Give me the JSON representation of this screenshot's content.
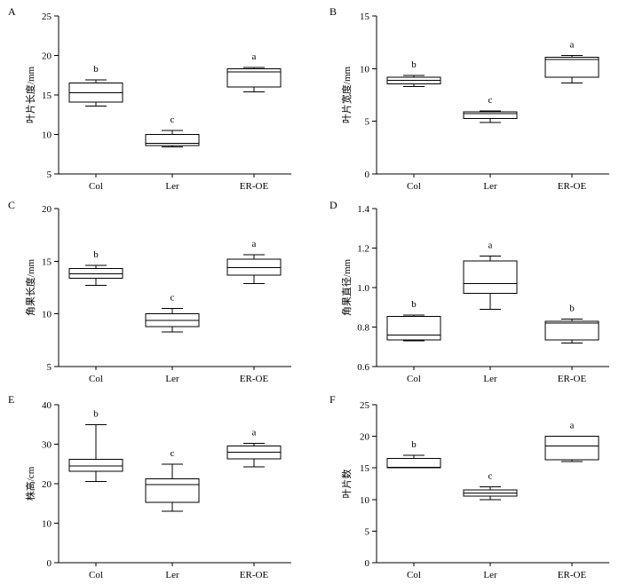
{
  "chart_data": [
    {
      "type": "boxplot",
      "panel": "A",
      "ylabel": "叶片长度/mm",
      "ylim": [
        5,
        25
      ],
      "yticks": [
        5,
        10,
        15,
        20,
        25
      ],
      "categories": [
        "Col",
        "Ler",
        "ER-OE"
      ],
      "boxes": [
        {
          "min": 13.6,
          "q1": 14.1,
          "median": 15.3,
          "q3": 16.5,
          "max": 16.9,
          "label": "b"
        },
        {
          "min": 8.4,
          "q1": 8.6,
          "median": 8.9,
          "q3": 10.0,
          "max": 10.5,
          "label": "c"
        },
        {
          "min": 15.4,
          "q1": 16.0,
          "median": 17.9,
          "q3": 18.3,
          "max": 18.5,
          "label": "a"
        }
      ]
    },
    {
      "type": "boxplot",
      "panel": "B",
      "ylabel": "叶片宽度/mm",
      "ylim": [
        0,
        15
      ],
      "yticks": [
        0,
        5,
        10,
        15
      ],
      "categories": [
        "Col",
        "Ler",
        "ER-OE"
      ],
      "boxes": [
        {
          "min": 8.3,
          "q1": 8.55,
          "median": 8.9,
          "q3": 9.2,
          "max": 9.35,
          "label": "b"
        },
        {
          "min": 4.9,
          "q1": 5.25,
          "median": 5.75,
          "q3": 5.9,
          "max": 6.0,
          "label": "c"
        },
        {
          "min": 8.65,
          "q1": 9.2,
          "median": 10.85,
          "q3": 11.1,
          "max": 11.25,
          "label": "a"
        }
      ]
    },
    {
      "type": "boxplot",
      "panel": "C",
      "ylabel": "角果长度/mm",
      "ylim": [
        5,
        20
      ],
      "yticks": [
        5,
        10,
        15,
        20
      ],
      "categories": [
        "Col",
        "Ler",
        "ER-OE"
      ],
      "boxes": [
        {
          "min": 12.7,
          "q1": 13.4,
          "median": 13.8,
          "q3": 14.3,
          "max": 14.6,
          "label": "b"
        },
        {
          "min": 8.3,
          "q1": 8.8,
          "median": 9.4,
          "q3": 10.0,
          "max": 10.5,
          "label": "c"
        },
        {
          "min": 12.9,
          "q1": 13.7,
          "median": 14.4,
          "q3": 15.2,
          "max": 15.6,
          "label": "a"
        }
      ]
    },
    {
      "type": "boxplot",
      "panel": "D",
      "ylabel": "角果直径/mm",
      "ylim": [
        0.6,
        1.4
      ],
      "yticks": [
        0.6,
        0.8,
        1.0,
        1.2,
        1.4
      ],
      "categories": [
        "Col",
        "Ler",
        "ER-OE"
      ],
      "boxes": [
        {
          "min": 0.73,
          "q1": 0.735,
          "median": 0.76,
          "q3": 0.855,
          "max": 0.86,
          "label": "b"
        },
        {
          "min": 0.89,
          "q1": 0.97,
          "median": 1.02,
          "q3": 1.135,
          "max": 1.16,
          "label": "a"
        },
        {
          "min": 0.72,
          "q1": 0.735,
          "median": 0.82,
          "q3": 0.83,
          "max": 0.84,
          "label": "b"
        }
      ]
    },
    {
      "type": "boxplot",
      "panel": "E",
      "ylabel": "株高/cm",
      "ylim": [
        0,
        40
      ],
      "yticks": [
        0,
        10,
        20,
        30,
        40
      ],
      "categories": [
        "Col",
        "Ler",
        "ER-OE"
      ],
      "boxes": [
        {
          "min": 20.6,
          "q1": 23.1,
          "median": 24.5,
          "q3": 26.2,
          "max": 35.0,
          "label": "b"
        },
        {
          "min": 13.0,
          "q1": 15.3,
          "median": 19.8,
          "q3": 21.2,
          "max": 25.0,
          "label": "c"
        },
        {
          "min": 24.3,
          "q1": 26.3,
          "median": 28.0,
          "q3": 29.5,
          "max": 30.2,
          "label": "a"
        }
      ]
    },
    {
      "type": "boxplot",
      "panel": "F",
      "ylabel": "叶片数",
      "ylim": [
        0,
        25
      ],
      "yticks": [
        0,
        5,
        10,
        15,
        20,
        25
      ],
      "categories": [
        "Col",
        "Ler",
        "ER-OE"
      ],
      "boxes": [
        {
          "min": 15.0,
          "q1": 15.0,
          "median": 15.1,
          "q3": 16.5,
          "max": 17.0,
          "label": "b"
        },
        {
          "min": 10.0,
          "q1": 10.5,
          "median": 11.0,
          "q3": 11.5,
          "max": 12.0,
          "label": "c"
        },
        {
          "min": 16.0,
          "q1": 16.3,
          "median": 18.5,
          "q3": 20.0,
          "max": 20.0,
          "label": "a"
        }
      ]
    }
  ]
}
